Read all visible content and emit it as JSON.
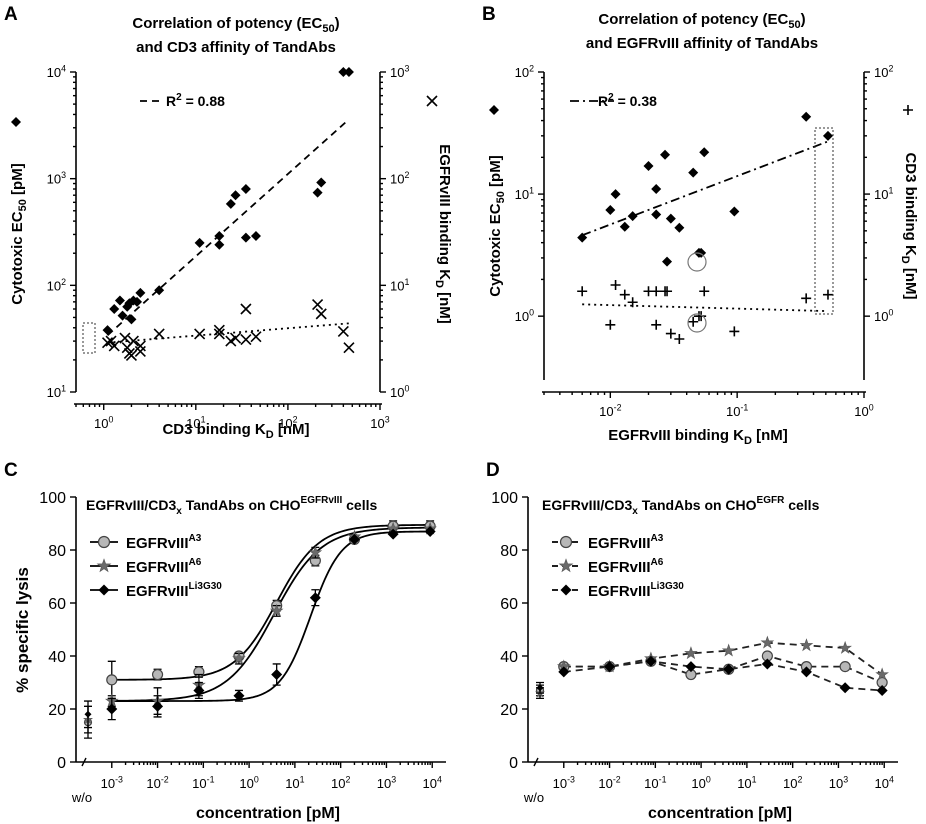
{
  "chart_data": [
    {
      "id": "A",
      "panel_label": "A",
      "type": "scatter",
      "title_line1": "Correlation of potency (EC",
      "title_sub": "50",
      "title_line1_end": ")",
      "title_line2": "and CD3 affinity of TandAbs",
      "xlabel": "CD3 binding K",
      "xlabel_sub": "D",
      "xlabel_end": " [nM]",
      "ylabel": "Cytotoxic EC",
      "ylabel_sub": "50",
      "ylabel_end": " [pM]",
      "y2label": "EGFRvIII binding K",
      "y2label_sub": "D",
      "y2label_end": " [nM]",
      "xlim": [
        0.5,
        1000
      ],
      "ylim": [
        10,
        10000
      ],
      "y2lim": [
        1,
        1000
      ],
      "xticks": [
        {
          "b": "10",
          "e": "0"
        },
        {
          "b": "10",
          "e": "1"
        },
        {
          "b": "10",
          "e": "2"
        },
        {
          "b": "10",
          "e": "3"
        }
      ],
      "yticks": [
        {
          "b": "10",
          "e": "1"
        },
        {
          "b": "10",
          "e": "2"
        },
        {
          "b": "10",
          "e": "3"
        },
        {
          "b": "10",
          "e": "4"
        }
      ],
      "y2ticks": [
        {
          "b": "10",
          "e": "0"
        },
        {
          "b": "10",
          "e": "1"
        },
        {
          "b": "10",
          "e": "2"
        },
        {
          "b": "10",
          "e": "3"
        }
      ],
      "r2_label": "R",
      "r2_sup": "2",
      "r2_value": " = 0.88",
      "series": [
        {
          "name": "Cytotoxic EC50",
          "marker": "diamond",
          "axis": "left",
          "x": [
            1.1,
            1.3,
            1.5,
            1.6,
            1.8,
            1.9,
            2.0,
            2.1,
            2.3,
            2.5,
            4,
            11,
            18,
            18,
            24,
            27,
            35,
            35,
            45,
            210,
            230,
            400,
            460
          ],
          "y": [
            38,
            60,
            72,
            52,
            63,
            68,
            48,
            72,
            70,
            85,
            90,
            250,
            240,
            290,
            580,
            700,
            800,
            280,
            290,
            740,
            920,
            10000,
            10000
          ]
        },
        {
          "name": "EGFRvIII binding KD",
          "marker": "x",
          "axis": "right",
          "x": [
            1.1,
            1.2,
            1.3,
            1.7,
            1.8,
            1.9,
            2.0,
            2.1,
            2.5,
            2.5,
            4,
            11,
            18,
            18,
            24,
            27,
            35,
            35,
            45,
            210,
            230,
            400,
            460
          ],
          "y": [
            2.9,
            3.0,
            2.7,
            3.2,
            2.6,
            2.3,
            2.2,
            3.0,
            2.7,
            2.4,
            3.5,
            3.5,
            3.8,
            3.5,
            3.0,
            3.2,
            6.0,
            3.1,
            3.3,
            6.6,
            5.4,
            3.7,
            2.6
          ]
        }
      ],
      "fit_lines": [
        {
          "name": "R2 = 0.88 fit",
          "style": "dash",
          "x": [
            1.1,
            460
          ],
          "y": [
            34,
            3600
          ],
          "axis": "left"
        },
        {
          "name": "EGFRvIII trend",
          "style": "dot",
          "x": [
            1.1,
            460
          ],
          "y": [
            2.9,
            4.4
          ],
          "axis": "right"
        }
      ],
      "legend_left_marker": "diamond",
      "legend_right_marker": "x"
    },
    {
      "id": "B",
      "panel_label": "B",
      "type": "scatter",
      "title_line1": "Correlation of potency (EC",
      "title_sub": "50",
      "title_line1_end": ")",
      "title_line2": "and EGFRvIII affinity of TandAbs",
      "xlabel": "EGFRvIII binding K",
      "xlabel_sub": "D",
      "xlabel_end": " [nM]",
      "ylabel": "Cytotoxic EC",
      "ylabel_sub": "50",
      "ylabel_end": " [pM]",
      "y2label": "CD3 binding K",
      "y2label_sub": "D",
      "y2label_end": " [nM]",
      "xlim": [
        0.003,
        1
      ],
      "ylim": [
        0.3,
        100
      ],
      "y2lim": [
        0.3,
        100
      ],
      "xticks": [
        {
          "b": "10",
          "e": "-2"
        },
        {
          "b": "10",
          "e": "-1"
        },
        {
          "b": "10",
          "e": "0"
        }
      ],
      "yticks": [
        {
          "b": "10",
          "e": "0"
        },
        {
          "b": "10",
          "e": "1"
        },
        {
          "b": "10",
          "e": "2"
        }
      ],
      "y2ticks": [
        {
          "b": "10",
          "e": "0"
        },
        {
          "b": "10",
          "e": "1"
        },
        {
          "b": "10",
          "e": "2"
        }
      ],
      "r2_label": "R",
      "r2_sup": "2",
      "r2_value": " = 0.38",
      "series": [
        {
          "name": "Cytotoxic EC50",
          "marker": "diamond",
          "axis": "left",
          "x": [
            0.006,
            0.01,
            0.011,
            0.013,
            0.015,
            0.02,
            0.023,
            0.027,
            0.023,
            0.03,
            0.035,
            0.045,
            0.05,
            0.055,
            0.095,
            0.35,
            0.52,
            0.052,
            0.028
          ],
          "y": [
            4.4,
            7.4,
            10,
            5.4,
            6.6,
            17,
            11,
            21,
            6.8,
            6.3,
            5.3,
            15,
            3.3,
            22,
            7.2,
            43,
            30,
            3.3,
            2.8
          ]
        },
        {
          "name": "CD3 binding KD",
          "marker": "plus",
          "axis": "right",
          "x": [
            0.006,
            0.01,
            0.011,
            0.013,
            0.015,
            0.02,
            0.023,
            0.027,
            0.023,
            0.03,
            0.035,
            0.045,
            0.05,
            0.055,
            0.095,
            0.35,
            0.52,
            0.052,
            0.028
          ],
          "y": [
            1.6,
            0.85,
            1.8,
            1.5,
            1.3,
            1.6,
            1.6,
            1.6,
            0.85,
            0.72,
            0.65,
            0.9,
            1.0,
            1.6,
            0.75,
            1.4,
            1.5,
            1.0,
            1.6
          ]
        }
      ],
      "fit_lines": [
        {
          "name": "R2 = 0.38 fit",
          "style": "dashdot",
          "x": [
            0.006,
            0.52
          ],
          "y": [
            4.6,
            27
          ],
          "axis": "left"
        },
        {
          "name": "CD3 trend",
          "style": "dot",
          "x": [
            0.006,
            0.52
          ],
          "y": [
            1.25,
            1.1
          ],
          "axis": "right"
        }
      ],
      "legend_left_marker": "diamond",
      "legend_right_marker": "plus"
    },
    {
      "id": "C",
      "panel_label": "C",
      "type": "line",
      "title": "EGFRvIII/CD3",
      "title_sub": "x",
      "title_mid": " TandAbs on CHO",
      "title_sup": "EGFRvIII",
      "title_end": " cells",
      "xlabel": "concentration [pM]",
      "ylabel": "% specific lysis",
      "wo_label": "w/o",
      "xlim": [
        0.0005,
        20000
      ],
      "ylim": [
        0,
        100
      ],
      "yticks": [
        "0",
        "20",
        "40",
        "60",
        "80",
        "100"
      ],
      "xticks": [
        {
          "b": "10",
          "e": "-3"
        },
        {
          "b": "10",
          "e": "-2"
        },
        {
          "b": "10",
          "e": "-1"
        },
        {
          "b": "10",
          "e": "0"
        },
        {
          "b": "10",
          "e": "1"
        },
        {
          "b": "10",
          "e": "2"
        },
        {
          "b": "10",
          "e": "3"
        },
        {
          "b": "10",
          "e": "4"
        }
      ],
      "x": [
        0.001,
        0.01,
        0.08,
        0.6,
        4,
        28,
        200,
        1400,
        9000
      ],
      "series": [
        {
          "name": "EGFRvIII",
          "name_sup": "A3",
          "marker": "circle",
          "values": [
            31,
            33,
            34,
            40,
            59,
            76,
            84,
            89,
            89
          ],
          "errors": [
            7,
            2,
            2,
            1,
            2,
            2,
            1,
            2,
            2
          ],
          "wo": 15,
          "wo_error": 6,
          "fit": {
            "bottom": 31,
            "top": 89.5,
            "ec50": 4,
            "hill": 0.95
          }
        },
        {
          "name": "EGFRvIII",
          "name_sup": "A6",
          "marker": "star",
          "values": [
            23,
            23,
            29,
            39,
            57,
            79,
            85,
            88,
            88
          ],
          "errors": [
            2,
            5,
            4,
            2,
            2,
            2,
            1,
            1,
            1
          ],
          "wo": 16,
          "wo_error": 5,
          "fit": {
            "bottom": 23,
            "top": 88.5,
            "ec50": 3.5,
            "hill": 0.85
          }
        },
        {
          "name": "EGFRvIII",
          "name_sup": "Li3G30",
          "marker": "diamond",
          "values": [
            20,
            21,
            27,
            25,
            33,
            62,
            84,
            86,
            87
          ],
          "errors": [
            4,
            4,
            3,
            2,
            4,
            3,
            1,
            1,
            1
          ],
          "wo": 18,
          "wo_error": 5,
          "fit": {
            "bottom": 23,
            "top": 87,
            "ec50": 22,
            "hill": 1.3
          }
        }
      ],
      "legend": "top-left"
    },
    {
      "id": "D",
      "panel_label": "D",
      "type": "line",
      "title": "EGFRvIII/CD3",
      "title_sub": "x",
      "title_mid": " TandAbs on CHO",
      "title_sup": "EGFR",
      "title_end": " cells",
      "xlabel": "concentration [pM]",
      "ylabel": "",
      "wo_label": "w/o",
      "xlim": [
        0.0005,
        20000
      ],
      "ylim": [
        0,
        100
      ],
      "yticks": [
        "0",
        "20",
        "40",
        "60",
        "80",
        "100"
      ],
      "xticks": [
        {
          "b": "10",
          "e": "-3"
        },
        {
          "b": "10",
          "e": "-2"
        },
        {
          "b": "10",
          "e": "-1"
        },
        {
          "b": "10",
          "e": "0"
        },
        {
          "b": "10",
          "e": "1"
        },
        {
          "b": "10",
          "e": "2"
        },
        {
          "b": "10",
          "e": "3"
        },
        {
          "b": "10",
          "e": "4"
        }
      ],
      "x": [
        0.001,
        0.01,
        0.08,
        0.6,
        4,
        28,
        200,
        1400,
        9000
      ],
      "series": [
        {
          "name": "EGFRvIII",
          "name_sup": "A3",
          "marker": "circle",
          "values": [
            36,
            36,
            38,
            33,
            35,
            40,
            36,
            36,
            30
          ],
          "errors": [
            1,
            1,
            1,
            1,
            1,
            1,
            1,
            1,
            1
          ],
          "wo": 27,
          "wo_error": 2
        },
        {
          "name": "EGFRvIII",
          "name_sup": "A6",
          "marker": "star",
          "values": [
            36,
            36,
            39,
            41,
            42,
            45,
            44,
            43,
            33
          ],
          "errors": [
            1,
            1,
            1,
            1,
            1,
            1,
            1,
            1,
            1
          ],
          "wo": 26,
          "wo_error": 2
        },
        {
          "name": "EGFRvIII",
          "name_sup": "Li3G30",
          "marker": "diamond",
          "values": [
            34,
            36,
            38,
            36,
            35,
            37,
            34,
            28,
            27
          ],
          "errors": [
            1,
            1,
            1,
            1,
            1,
            1,
            1,
            1,
            1
          ],
          "wo": 28,
          "wo_error": 2
        }
      ],
      "legend": "top-left"
    }
  ]
}
